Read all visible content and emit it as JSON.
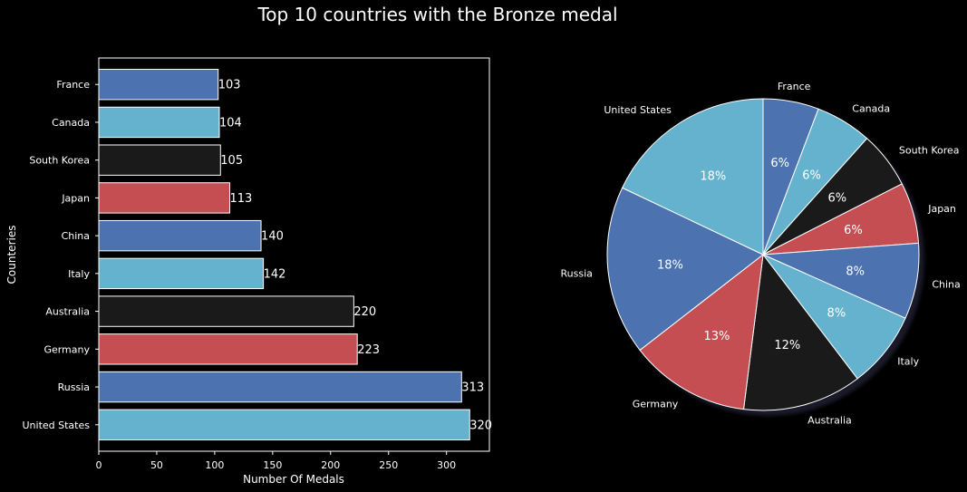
{
  "figure": {
    "title": "Top 10 countries with the Bronze medal"
  },
  "chart_data": [
    {
      "type": "bar",
      "orientation": "horizontal",
      "xlabel": "Number Of Medals",
      "ylabel": "Counteries",
      "xlim": [
        0,
        337
      ],
      "xticks": [
        0,
        50,
        100,
        150,
        200,
        250,
        300
      ],
      "categories": [
        "United States",
        "Russia",
        "Germany",
        "Australia",
        "Italy",
        "China",
        "Japan",
        "South Korea",
        "Canada",
        "France"
      ],
      "values": [
        320,
        313,
        223,
        220,
        142,
        140,
        113,
        105,
        104,
        103
      ],
      "colors": [
        "#64b2cd",
        "#4c72b0",
        "#c44e52",
        "#1a1a1a",
        "#64b2cd",
        "#4c72b0",
        "#c44e52",
        "#1a1a1a",
        "#64b2cd",
        "#4c72b0"
      ],
      "grid": false
    },
    {
      "type": "pie",
      "labels": [
        "France",
        "Canada",
        "South Korea",
        "Japan",
        "China",
        "Italy",
        "Australia",
        "Germany",
        "Russia",
        "United States"
      ],
      "values": [
        103,
        104,
        105,
        113,
        140,
        142,
        220,
        223,
        313,
        320
      ],
      "percent_labels": [
        "6%",
        "6%",
        "6%",
        "6%",
        "8%",
        "8%",
        "12%",
        "13%",
        "18%",
        "18%"
      ],
      "colors": [
        "#4c72b0",
        "#64b2cd",
        "#1a1a1a",
        "#c44e52",
        "#4c72b0",
        "#64b2cd",
        "#1a1a1a",
        "#c44e52",
        "#4c72b0",
        "#64b2cd"
      ],
      "start_angle_deg": 90,
      "direction": "clockwise",
      "shadow": true
    }
  ]
}
